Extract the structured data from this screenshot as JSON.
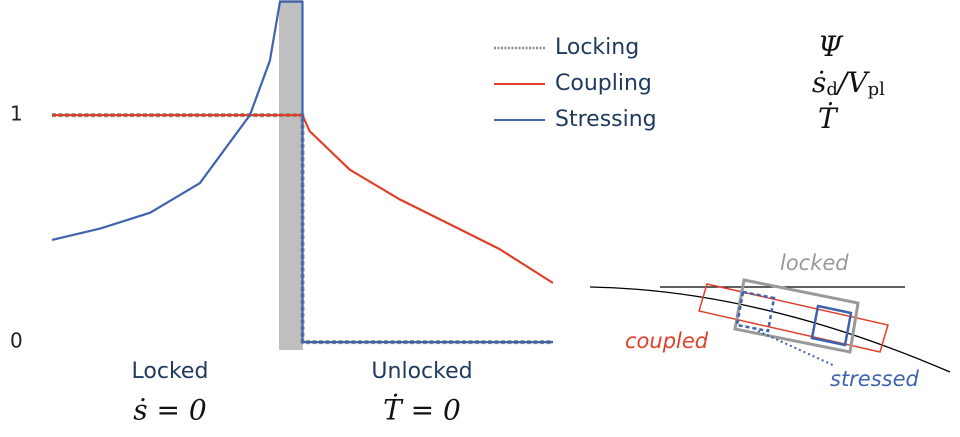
{
  "chart_data": {
    "type": "line",
    "xlim": [
      0,
      1
    ],
    "ylim": [
      -0.035,
      1.507
    ],
    "yticks": [
      0,
      1
    ],
    "series": [
      {
        "name": "Locking",
        "symbol": [
          "Ψ"
        ],
        "color": "#8c8c8c",
        "style": "dotted",
        "x": [
          0,
          0.5,
          0.5,
          1
        ],
        "values": [
          1,
          1,
          0,
          0
        ]
      },
      {
        "name": "Coupling",
        "symbol": [
          "ṡ",
          "d",
          "/V",
          "pl"
        ],
        "color": "#e0402a",
        "style": "solid",
        "x": [
          0,
          0.5,
          0.514,
          0.594,
          0.693,
          0.793,
          0.893,
          1
        ],
        "values": [
          1,
          1,
          0.93,
          0.76,
          0.63,
          0.52,
          0.41,
          0.26
        ]
      },
      {
        "name": "Stressing",
        "symbol": [
          "Ṫ"
        ],
        "color": "#3f63ad",
        "style": "solid",
        "x": [
          0,
          0.096,
          0.196,
          0.295,
          0.395,
          0.435,
          0.455,
          0.5,
          0.5,
          1
        ],
        "values": [
          0.45,
          0.5,
          0.57,
          0.7,
          1,
          1.24,
          1.5,
          1.5,
          0,
          0
        ]
      }
    ],
    "regions": [
      {
        "label": "Locked",
        "condition": "ṡ = 0"
      },
      {
        "label": "Unlocked",
        "condition": "Ṫ = 0"
      }
    ],
    "annotations": {
      "locked": "locked",
      "coupled": "coupled",
      "stressed": "stressed"
    }
  }
}
